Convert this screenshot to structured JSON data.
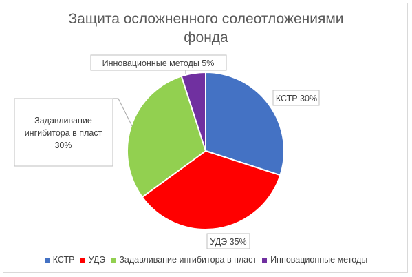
{
  "chart_data": {
    "type": "pie",
    "title": "Защита осложненного солеотложениями фонда",
    "title_lines": [
      "Защита осложненного солеотложениями",
      "фонда"
    ],
    "categories": [
      "КСТР",
      "УДЭ",
      "Задавливание ингибитора в пласт",
      "Инновационные методы"
    ],
    "values": [
      30,
      35,
      30,
      5
    ],
    "colors": [
      "#4472c4",
      "#ff0000",
      "#92d050",
      "#7030a0"
    ],
    "data_labels": [
      "КСТР 30%",
      "УДЭ 35%",
      "Задавливание ингибитора в пласт 30%",
      "Инновационные методы 5%"
    ],
    "data_label_lines": [
      [
        "КСТР 30%"
      ],
      [
        "УДЭ 35%"
      ],
      [
        "Задавливание",
        "ингибитора в пласт",
        "30%"
      ],
      [
        "Инновационные методы 5%"
      ]
    ],
    "legend": {
      "position": "bottom",
      "entries": [
        "КСТР",
        "УДЭ",
        "Задавливание ингибитора в пласт",
        "Инновационные методы"
      ]
    }
  }
}
